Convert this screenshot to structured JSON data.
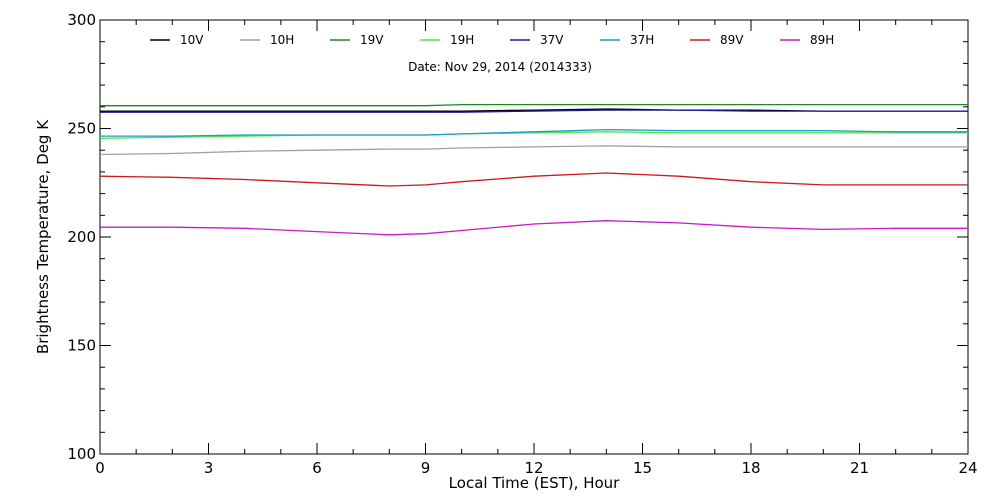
{
  "chart_data": {
    "type": "line",
    "subtitle": "Date: Nov 29, 2014 (2014333)",
    "xlabel": "Local Time (EST), Hour",
    "ylabel": "Brightness Temperature, Deg K",
    "xlim": [
      0,
      24
    ],
    "ylim": [
      100,
      300
    ],
    "x_ticks": [
      0,
      3,
      6,
      9,
      12,
      15,
      18,
      21,
      24
    ],
    "y_ticks": [
      100,
      150,
      200,
      250,
      300
    ],
    "x_tick_labels": [
      "0",
      "3",
      "6",
      "9",
      "12",
      "15",
      "18",
      "21",
      "24"
    ],
    "y_tick_labels": [
      "100",
      "150",
      "200",
      "250",
      "300"
    ],
    "x_minor_step": 1,
    "y_minor_step": 10,
    "grid": false,
    "legend_position": "top",
    "x": [
      0,
      2,
      4,
      6,
      8,
      9,
      10,
      12,
      14,
      16,
      18,
      20,
      22,
      24
    ],
    "series": [
      {
        "name": "10V",
        "color": "#000000",
        "values": [
          258,
          258,
          258,
          258,
          258,
          258,
          258,
          258.5,
          259,
          258.5,
          258.5,
          258,
          258,
          258
        ]
      },
      {
        "name": "10H",
        "color": "#a0a0a0",
        "values": [
          238,
          238.5,
          239.5,
          240,
          240.5,
          240.5,
          241,
          241.5,
          242,
          241.5,
          241.5,
          241.5,
          241.5,
          241.5
        ]
      },
      {
        "name": "19V",
        "color": "#1a8c1a",
        "values": [
          260.5,
          260.5,
          260.5,
          260.5,
          260.5,
          260.5,
          261,
          261,
          261,
          261,
          261,
          261,
          261,
          261
        ]
      },
      {
        "name": "19H",
        "color": "#4ce64c",
        "values": [
          245.5,
          246,
          246.5,
          247,
          247,
          247,
          247.5,
          248,
          248.5,
          248,
          248,
          248,
          248,
          248
        ]
      },
      {
        "name": "37V",
        "color": "#1a1a9c",
        "values": [
          257.5,
          257.5,
          257.5,
          257.5,
          257.5,
          257.5,
          257.5,
          258,
          258.5,
          258.5,
          258,
          258,
          258,
          258
        ]
      },
      {
        "name": "37H",
        "color": "#1a9cc8",
        "values": [
          246.5,
          246.5,
          247,
          247,
          247,
          247,
          247.5,
          248.5,
          249.5,
          249,
          249,
          249,
          248.5,
          248.5
        ]
      },
      {
        "name": "89V",
        "color": "#cc1a1a",
        "values": [
          228,
          227.5,
          226.5,
          225,
          223.5,
          224,
          225.5,
          228,
          229.5,
          228,
          225.5,
          224,
          224,
          224
        ]
      },
      {
        "name": "89H",
        "color": "#c81ac8",
        "values": [
          204.5,
          204.5,
          204,
          202.5,
          201,
          201.5,
          203,
          206,
          207.5,
          206.5,
          204.5,
          203.5,
          204,
          204
        ]
      }
    ]
  }
}
